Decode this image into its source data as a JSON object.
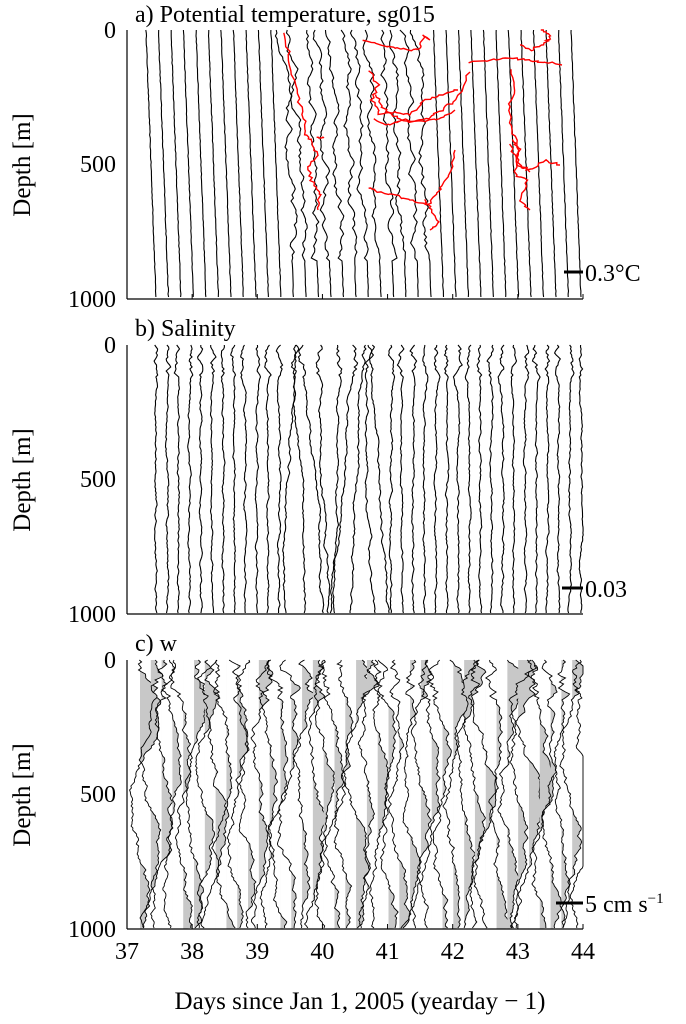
{
  "chart_data": [
    {
      "type": "line",
      "title": "a) Potential temperature, sg015",
      "ylabel": "Depth [m]",
      "xlim": [
        37,
        44
      ],
      "ylim": [
        0,
        1000
      ],
      "y_reversed": true,
      "yticks": [
        "0",
        "500",
        "1000"
      ],
      "scale_label": "0.3°C",
      "profile_count": 35,
      "colors": {
        "profiles": "#000000",
        "highlight": "#ff0000"
      }
    },
    {
      "type": "line",
      "title": "b) Salinity",
      "ylabel": "Depth [m]",
      "xlim": [
        37,
        44
      ],
      "ylim": [
        0,
        1000
      ],
      "y_reversed": true,
      "yticks": [
        "0",
        "500",
        "1000"
      ],
      "scale_label": "0.03",
      "profile_count": 39,
      "colors": {
        "profiles": "#000000"
      }
    },
    {
      "type": "area",
      "title": "c) w",
      "ylabel": "Depth [m]",
      "xlabel": "Days since Jan 1, 2005 (yearday − 1)",
      "xlim": [
        37,
        44
      ],
      "ylim": [
        0,
        1000
      ],
      "y_reversed": true,
      "xticks": [
        "37",
        "38",
        "39",
        "40",
        "41",
        "42",
        "43",
        "44"
      ],
      "yticks": [
        "0",
        "500",
        "1000"
      ],
      "scale_label": "5 cm s",
      "scale_label_exp": "−1",
      "profile_count": 42,
      "colors": {
        "profiles": "#000000",
        "fill": "#c8c8c8"
      }
    }
  ]
}
